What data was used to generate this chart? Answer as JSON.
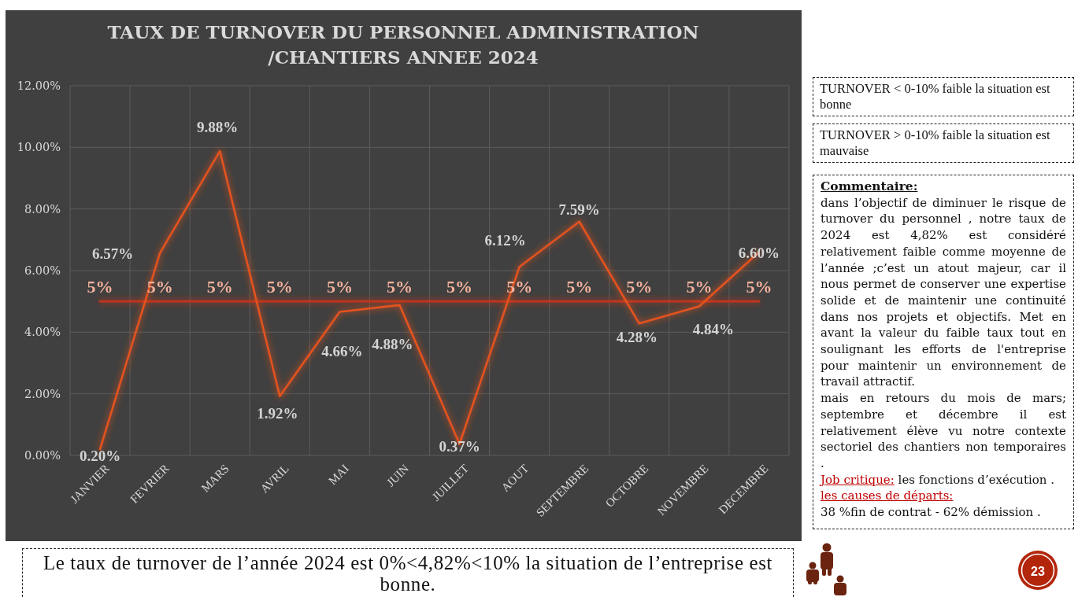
{
  "chart_data": {
    "type": "line",
    "title": "TAUX DE TURNOVER DU PERSONNEL ADMINISTRATION\n/CHANTIERS ANNEE 2024",
    "categories": [
      "JANVIER",
      "FEVRIER",
      "MARS",
      "AVRIL",
      "MAI",
      "JUIN",
      "JUILLET",
      "AOUT",
      "SEPTEMBRE",
      "OCTOBRE",
      "NOVEMBRE",
      "DECEMBRE"
    ],
    "series": [
      {
        "color": "#e4521f",
        "values": [
          0.2,
          6.57,
          9.88,
          1.92,
          4.66,
          4.88,
          0.37,
          6.12,
          7.59,
          4.28,
          4.84,
          6.6
        ],
        "value_labels": [
          "0.20%",
          "6.57%",
          "9.88%",
          "1.92%",
          "4.66%",
          "4.88%",
          "0.37%",
          "6.12%",
          "7.59%",
          "4.28%",
          "4.84%",
          "6.60%"
        ]
      },
      {
        "color": "#c2341b",
        "values": [
          5,
          5,
          5,
          5,
          5,
          5,
          5,
          5,
          5,
          5,
          5,
          5
        ],
        "value_labels": [
          "5%",
          "5%",
          "5%",
          "5%",
          "5%",
          "5%",
          "5%",
          "5%",
          "5%",
          "5%",
          "5%",
          "5%"
        ]
      }
    ],
    "ylim": [
      0,
      12
    ],
    "yticks": [
      {
        "value": 0,
        "label": "0.00%"
      },
      {
        "value": 2,
        "label": "2.00%"
      },
      {
        "value": 4,
        "label": "4.00%"
      },
      {
        "value": 6,
        "label": "6.00%"
      },
      {
        "value": 8,
        "label": "8.00%"
      },
      {
        "value": 10,
        "label": "10.00%"
      },
      {
        "value": 12,
        "label": "12.00%"
      }
    ],
    "grid": true,
    "annotations": [
      "TURNOVER < 0-10% faible la situation est bonne",
      "TURNOVER > 0-10% faible la situation est mauvaise",
      "Commentaire:",
      "dans l’objectif de diminuer le risque de turnover du personnel , notre taux de 2024 est 4,82% est considéré relativement faible comme moyenne de l’année ;c’est un atout majeur, car il nous permet de conserver une expertise solide et de maintenir une continuité dans nos projets et objectifs. Met en avant la valeur du faible taux tout en soulignant les efforts de l'entreprise pour maintenir un environnement de travail attractif.",
      "mais en retours du mois de mars; septembre et décembre il est relativement élève vu notre contexte sectoriel des chantiers non temporaires .",
      "Job critique:",
      "les fonctions d’exécution .",
      "les causes de départs:",
      "38 %fin de contrat - 62% démission .",
      "Le taux de turnover de l’année 2024 est 0%<4,82%<10% la situation de l’entreprise est bonne.",
      "23"
    ]
  }
}
